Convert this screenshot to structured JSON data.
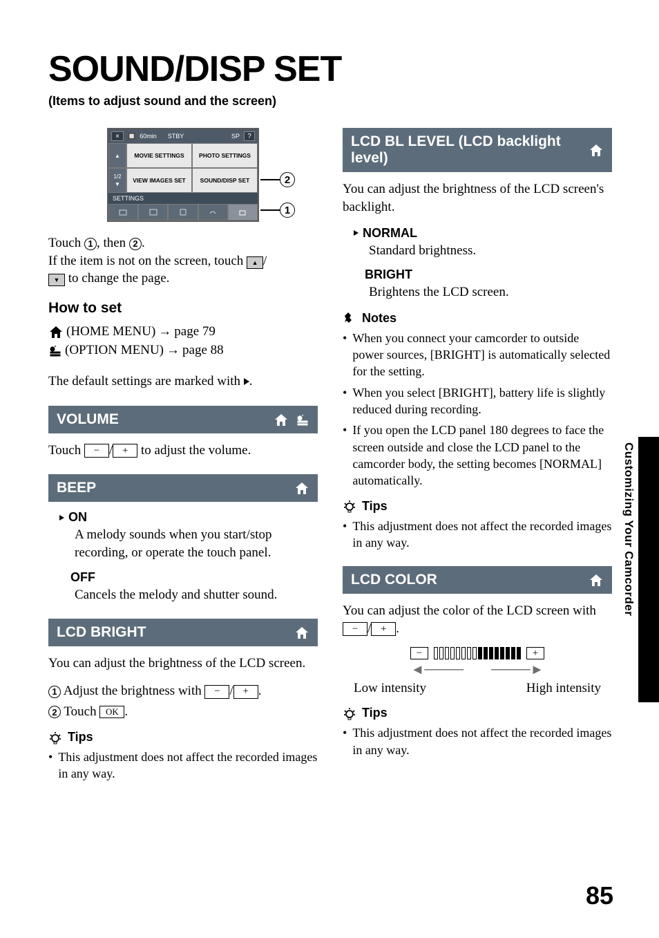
{
  "page": {
    "title": "SOUND/DISP SET",
    "subtitle": "(Items to adjust sound and the screen)",
    "number": "85",
    "side_label": "Customizing Your Camcorder"
  },
  "screenshot": {
    "battery": "60min",
    "stby": "STBY",
    "nav_page": "1/2",
    "cells": [
      "MOVIE SETTINGS",
      "PHOTO SETTINGS",
      "VIEW IMAGES SET",
      "SOUND/DISP SET"
    ],
    "settings_label": "SETTINGS",
    "callout1": "1",
    "callout2": "2"
  },
  "left": {
    "touch_intro_a": "Touch ",
    "touch_intro_b": ", then ",
    "touch_intro_c": ".",
    "not_on_screen_a": "If the item is not on the screen, touch ",
    "not_on_screen_b": "/",
    "not_on_screen_c": " to change the page.",
    "how_to_set": "How to set",
    "home_menu": " (HOME MENU) ",
    "home_menu_page": " page 79",
    "option_menu": "(OPTION MENU) ",
    "option_menu_page": " page 88",
    "default_marked": "The default settings are marked with ",
    "default_marked_end": "."
  },
  "volume": {
    "title": "VOLUME",
    "text_a": "Touch ",
    "text_b": "/",
    "text_c": " to adjust the volume."
  },
  "beep": {
    "title": "BEEP",
    "on": "ON",
    "on_desc": "A melody sounds when you start/stop recording, or operate the touch panel.",
    "off": "OFF",
    "off_desc": "Cancels the melody and shutter sound."
  },
  "lcd_bright": {
    "title": "LCD BRIGHT",
    "intro": "You can adjust the brightness of the LCD screen.",
    "step1_a": " Adjust the brightness with ",
    "step1_b": "/",
    "step1_c": ".",
    "step2_a": " Touch ",
    "step2_ok": "OK",
    "step2_b": ".",
    "tips_title": "Tips",
    "tips_1": "This adjustment does not affect the recorded images in any way."
  },
  "lcd_bl": {
    "title": "LCD BL LEVEL (LCD backlight level)",
    "intro": "You can adjust the brightness of the LCD screen's backlight.",
    "normal": "NORMAL",
    "normal_desc": "Standard brightness.",
    "bright": "BRIGHT",
    "bright_desc": "Brightens the LCD screen.",
    "notes_title": "Notes",
    "note1": "When you connect your camcorder to outside power sources, [BRIGHT] is automatically selected for the setting.",
    "note2": "When you select [BRIGHT], battery life is slightly reduced during recording.",
    "note3": "If you open the LCD panel 180 degrees to face the screen outside and close the LCD panel to the camcorder body, the setting becomes [NORMAL] automatically.",
    "tips_title": "Tips",
    "tips_1": "This adjustment does not affect the recorded images in any way."
  },
  "lcd_color": {
    "title": "LCD COLOR",
    "intro_a": "You can adjust the color of the LCD screen with ",
    "intro_b": "/",
    "intro_c": ".",
    "low": "Low intensity",
    "high": "High intensity",
    "tips_title": "Tips",
    "tips_1": "This adjustment does not affect the recorded images in any way.",
    "bar": {
      "total": 16,
      "filled_from": 8
    }
  },
  "glyphs": {
    "minus": "−",
    "plus": "+",
    "up": "▲",
    "down": "▼"
  },
  "colors": {
    "banner_bg": "#5d6c7a",
    "side_tab": "#000000"
  }
}
